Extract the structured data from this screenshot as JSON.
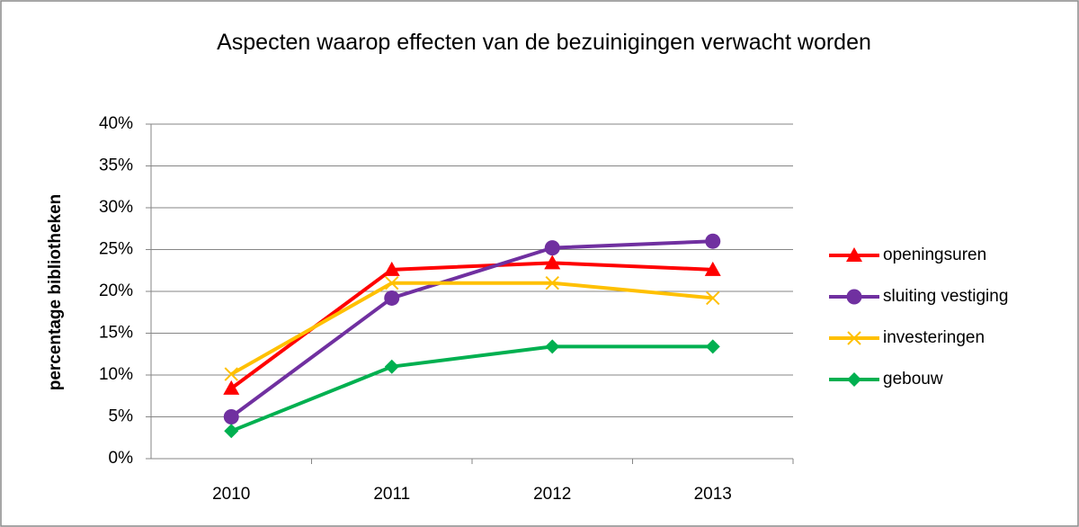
{
  "chart_data": {
    "type": "line",
    "title": "Aspecten waarop effecten van de bezuinigingen verwacht worden",
    "y_label": "percentage bibliotheken",
    "categories": [
      "2010",
      "2011",
      "2012",
      "2013"
    ],
    "series": [
      {
        "name": "openingsuren",
        "color": "#ff0000",
        "marker": "triangle",
        "values": [
          8.4,
          22.6,
          23.4,
          22.6
        ]
      },
      {
        "name": "sluiting vestiging",
        "color": "#7030a0",
        "marker": "circle",
        "values": [
          5,
          19.2,
          25.2,
          26
        ]
      },
      {
        "name": "investeringen",
        "color": "#ffc000",
        "marker": "x",
        "values": [
          10.1,
          21,
          21,
          19.2
        ]
      },
      {
        "name": "gebouw",
        "color": "#00b050",
        "marker": "diamond",
        "values": [
          3.3,
          11,
          13.4,
          13.4
        ]
      }
    ],
    "ylim": [
      0,
      40
    ],
    "yticks": [
      {
        "value": 0,
        "label": "0%"
      },
      {
        "value": 5,
        "label": "5%"
      },
      {
        "value": 10,
        "label": "10%"
      },
      {
        "value": 15,
        "label": "15%"
      },
      {
        "value": 20,
        "label": "20%"
      },
      {
        "value": 25,
        "label": "25%"
      },
      {
        "value": 30,
        "label": "30%"
      },
      {
        "value": 35,
        "label": "35%"
      },
      {
        "value": 40,
        "label": "40%"
      }
    ],
    "grid": true,
    "legend": "right"
  }
}
